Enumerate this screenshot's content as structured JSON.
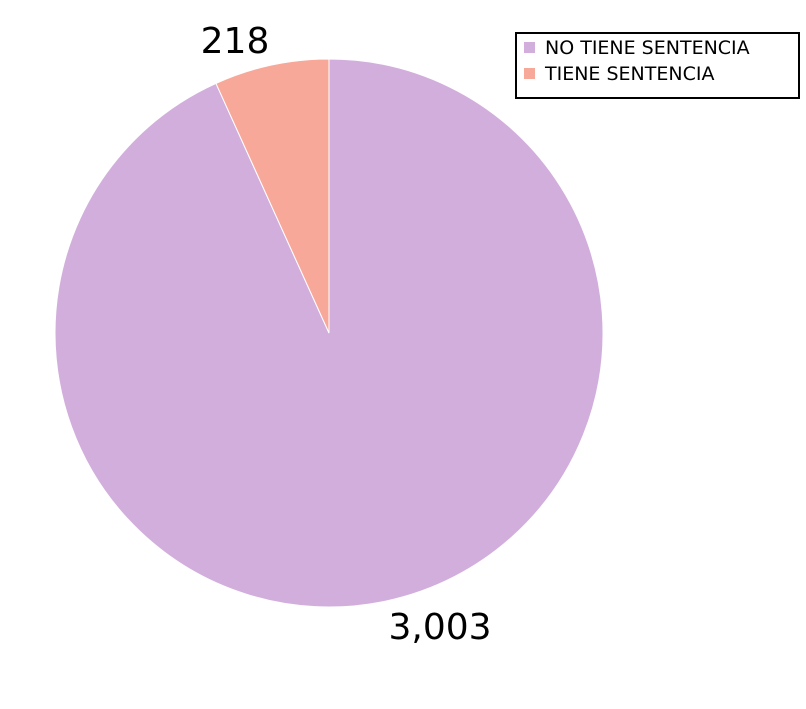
{
  "chart_data": {
    "type": "pie",
    "title": "",
    "start_angle": "12 o'clock, clockwise",
    "slices": [
      {
        "name": "NO TIENE SENTENCIA",
        "value": 3003,
        "label": "3,003",
        "color": "#d2aedc"
      },
      {
        "name": "TIENE SENTENCIA",
        "value": 218,
        "label": "218",
        "color": "#f8a898"
      }
    ],
    "legend": {
      "placement": "top-right",
      "entries": [
        "NO TIENE SENTENCIA",
        "TIENE SENTENCIA"
      ]
    },
    "slice_border_color": "#ffffff"
  }
}
